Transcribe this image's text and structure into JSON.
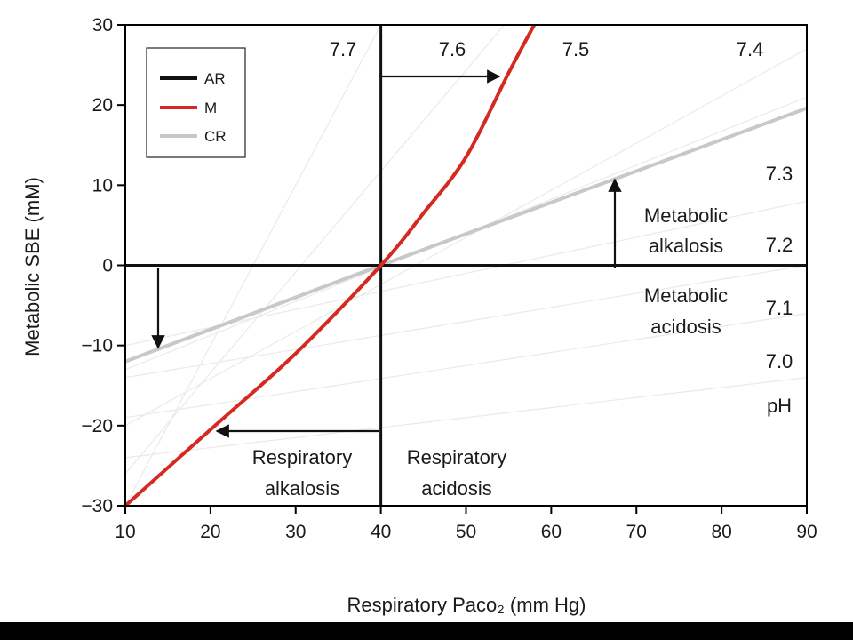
{
  "chart_data": {
    "type": "line",
    "xlabel": "Respiratory Paco₂ (mm Hg)",
    "ylabel": "Metabolic SBE (mM)",
    "xlim": [
      10,
      90
    ],
    "ylim": [
      -30,
      30
    ],
    "xticks": [
      10,
      20,
      30,
      40,
      50,
      60,
      70,
      80,
      90
    ],
    "yticks": [
      -30,
      -20,
      -10,
      0,
      10,
      20,
      30
    ],
    "grid": false,
    "legend": {
      "position": "top-left"
    },
    "series": [
      {
        "name": "AR",
        "color": "#111111",
        "kind": "reference-axes",
        "x": [
          [
            10,
            90
          ],
          [
            40,
            40
          ]
        ],
        "y": [
          [
            0,
            0
          ],
          [
            -30,
            30
          ]
        ]
      },
      {
        "name": "M",
        "color": "#d42a22",
        "x": [
          10,
          20,
          30,
          40,
          45,
          50,
          55,
          58
        ],
        "y": [
          -30,
          -20.5,
          -11,
          0,
          6.5,
          13.5,
          24,
          30
        ]
      },
      {
        "name": "CR",
        "color": "#c8c8c8",
        "x": [
          10,
          40,
          90
        ],
        "y": [
          -12,
          0,
          19.6
        ]
      }
    ],
    "ph_isopleths": [
      {
        "label": "7.7",
        "x": [
          10,
          40
        ],
        "y": [
          -30,
          30
        ]
      },
      {
        "label": "7.6",
        "x": [
          10,
          54.5
        ],
        "y": [
          -26,
          30
        ]
      },
      {
        "label": "7.5",
        "x": [
          10,
          90
        ],
        "y": [
          -20,
          27
        ]
      },
      {
        "label": "7.4",
        "x": [
          10,
          90
        ],
        "y": [
          -13,
          21
        ]
      },
      {
        "label": "7.3",
        "x": [
          10,
          90
        ],
        "y": [
          -10,
          8
        ]
      },
      {
        "label": "7.2",
        "x": [
          10,
          90
        ],
        "y": [
          -14,
          0
        ]
      },
      {
        "label": "7.1",
        "x": [
          10,
          90
        ],
        "y": [
          -19,
          -6
        ]
      },
      {
        "label": "7.0",
        "x": [
          10,
          90
        ],
        "y": [
          -24,
          -14
        ]
      }
    ],
    "ph_title": "pH",
    "annotations": {
      "metabolic_alkalosis": [
        "Metabolic",
        "alkalosis"
      ],
      "metabolic_acidosis": [
        "Metabolic",
        "acidosis"
      ],
      "respiratory_alkalosis": [
        "Respiratory",
        "alkalosis"
      ],
      "respiratory_acidosis": [
        "Respiratory",
        "acidosis"
      ]
    }
  },
  "colors": {
    "background": "#ffffff",
    "frame": "#000000",
    "ar": "#111111",
    "m": "#d42a22",
    "cr": "#c8c8c8",
    "isopleth": "#eaeaea"
  }
}
